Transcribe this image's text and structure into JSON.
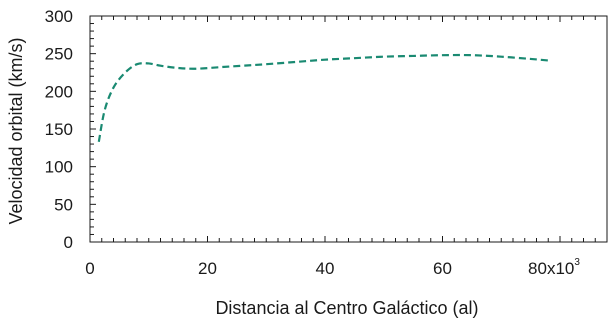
{
  "chart_data": {
    "type": "line",
    "title": "",
    "xlabel": "Distancia al Centro Galáctico (al)",
    "ylabel": "Velocidad orbital (km/s)",
    "xlim": [
      0,
      88
    ],
    "ylim": [
      0,
      300
    ],
    "x_ticks": [
      0,
      20,
      40,
      60,
      80
    ],
    "x_tick_labels": [
      "0",
      "20",
      "40",
      "60",
      "80x10"
    ],
    "x_tick_exponent": "3",
    "y_ticks": [
      0,
      50,
      100,
      150,
      200,
      250,
      300
    ],
    "y_tick_labels": [
      "0",
      "50",
      "100",
      "150",
      "200",
      "250",
      "300"
    ],
    "grid": false,
    "series": [
      {
        "name": "",
        "color": "#1a8a72",
        "style": "dashed",
        "x": [
          1.5,
          2.5,
          4,
          6,
          8,
          10,
          12,
          15,
          18,
          22,
          26,
          30,
          35,
          40,
          45,
          50,
          55,
          60,
          65,
          70,
          75,
          78
        ],
        "y": [
          133,
          175,
          205,
          225,
          236,
          237,
          234,
          231,
          230,
          232,
          234,
          236,
          239,
          242,
          244,
          246,
          247,
          248,
          248,
          246,
          243,
          241
        ]
      }
    ]
  }
}
